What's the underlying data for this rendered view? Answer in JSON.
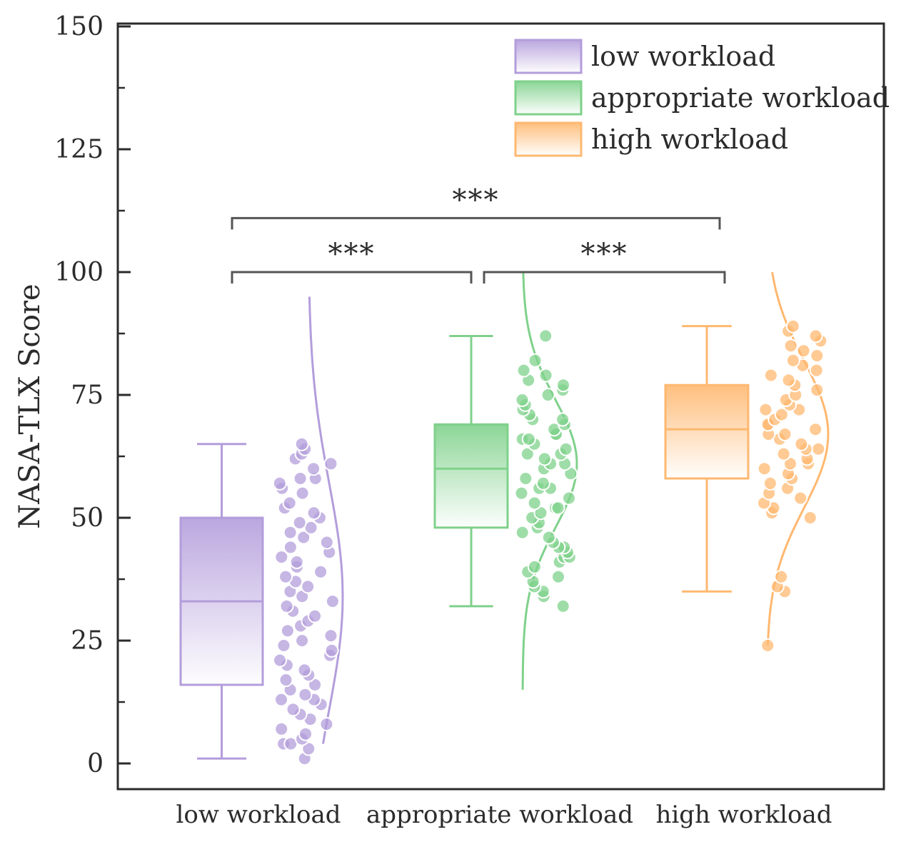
{
  "chart_data": {
    "type": "box",
    "ylabel": "NASA-TLX Score",
    "ylim": [
      0,
      150
    ],
    "yticks": [
      "0",
      "25",
      "50",
      "75",
      "100",
      "125",
      "150"
    ],
    "categories": [
      "low workload",
      "appropriate workload",
      "high workload"
    ],
    "legend_position": "top-right",
    "series": [
      {
        "name": "low workload",
        "color": "#b39ddb",
        "box": {
          "whisker_low": 1,
          "q1": 16,
          "median": 33,
          "q3": 50,
          "whisker_high": 65
        },
        "density_range": [
          4,
          95
        ],
        "points": [
          1,
          3,
          4,
          4,
          5,
          6,
          7,
          8,
          9,
          10,
          11,
          12,
          13,
          13,
          14,
          15,
          16,
          17,
          18,
          19,
          20,
          21,
          22,
          23,
          24,
          25,
          26,
          27,
          28,
          29,
          30,
          31,
          32,
          33,
          34,
          35,
          36,
          37,
          38,
          39,
          40,
          41,
          42,
          43,
          44,
          45,
          46,
          47,
          48,
          49,
          50,
          51,
          52,
          53,
          55,
          56,
          57,
          58,
          58,
          60,
          61,
          62,
          63,
          64,
          65
        ]
      },
      {
        "name": "appropriate workload",
        "color": "#7fd18b",
        "box": {
          "whisker_low": 32,
          "q1": 48,
          "median": 60,
          "q3": 69,
          "whisker_high": 87
        },
        "density_range": [
          15,
          100
        ],
        "points": [
          32,
          34,
          35,
          36,
          37,
          38,
          39,
          40,
          41,
          42,
          42,
          43,
          44,
          44,
          45,
          46,
          47,
          48,
          49,
          50,
          51,
          52,
          52,
          53,
          54,
          55,
          56,
          56,
          57,
          58,
          59,
          60,
          61,
          61,
          62,
          63,
          63,
          64,
          65,
          66,
          66,
          67,
          67,
          68,
          69,
          70,
          70,
          71,
          72,
          73,
          74,
          75,
          76,
          77,
          78,
          79,
          80,
          82,
          87
        ]
      },
      {
        "name": "high workload",
        "color": "#ffb870",
        "box": {
          "whisker_low": 35,
          "q1": 58,
          "median": 68,
          "q3": 77,
          "whisker_high": 89
        },
        "density_range": [
          24,
          100
        ],
        "points": [
          24,
          35,
          36,
          38,
          50,
          51,
          52,
          53,
          54,
          55,
          56,
          57,
          58,
          59,
          60,
          61,
          61,
          62,
          63,
          64,
          64,
          65,
          66,
          67,
          67,
          68,
          69,
          69,
          70,
          71,
          72,
          72,
          73,
          74,
          75,
          76,
          77,
          78,
          79,
          80,
          81,
          82,
          83,
          84,
          85,
          86,
          87,
          88,
          89
        ]
      }
    ],
    "significance": [
      {
        "from": 0,
        "to": 1,
        "label": "***",
        "y": 100
      },
      {
        "from": 1,
        "to": 2,
        "label": "***",
        "y": 100
      },
      {
        "from": 0,
        "to": 2,
        "label": "***",
        "y": 111
      }
    ]
  }
}
